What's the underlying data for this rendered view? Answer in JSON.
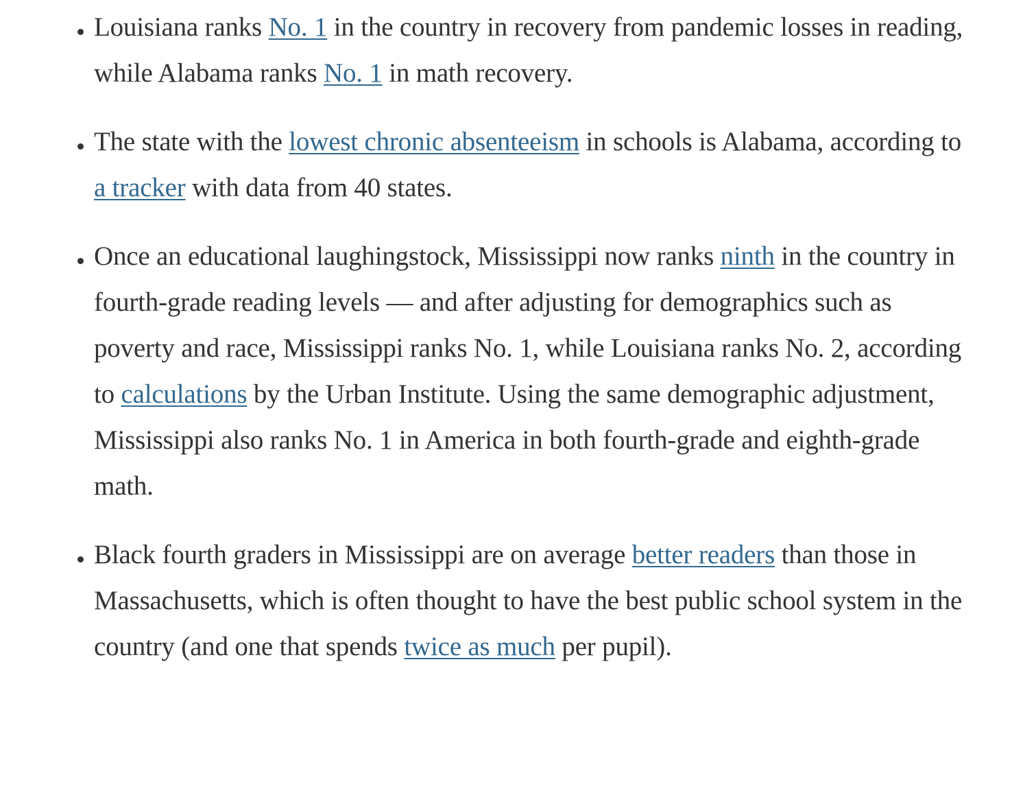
{
  "page": {
    "background": "#ffffff",
    "text_color": "#333333",
    "link_color": "#326891"
  },
  "bullets": [
    {
      "runs": [
        {
          "text": "Louisiana ranks "
        },
        {
          "text": "No. 1",
          "link": true
        },
        {
          "text": " in the country in recovery from pandemic losses in reading, while Alabama ranks "
        },
        {
          "text": "No. 1",
          "link": true
        },
        {
          "text": " in math recovery."
        }
      ]
    },
    {
      "runs": [
        {
          "text": "The state with the "
        },
        {
          "text": "lowest chronic absenteeism",
          "link": true
        },
        {
          "text": " in schools is Alabama, according to "
        },
        {
          "text": "a tracker",
          "link": true
        },
        {
          "text": " with data from 40 states."
        }
      ]
    },
    {
      "runs": [
        {
          "text": "Once an educational laughingstock, Mississippi now ranks "
        },
        {
          "text": "ninth",
          "link": true
        },
        {
          "text": " in the country in fourth-grade reading levels — and after adjusting for demographics such as poverty and race, Mississippi ranks No. 1, while Louisiana ranks No. 2, according to "
        },
        {
          "text": "calculations",
          "link": true
        },
        {
          "text": " by the Urban Institute. Using the same demographic adjustment, Mississippi also ranks No. 1 in America in both fourth-grade and eighth-grade math."
        }
      ]
    },
    {
      "runs": [
        {
          "text": "Black fourth graders in Mississippi are on average "
        },
        {
          "text": "better readers",
          "link": true
        },
        {
          "text": " than those in Massachusetts, which is often thought to have the best public school system in the country (and one that spends "
        },
        {
          "text": "twice as much",
          "link": true
        },
        {
          "text": " per pupil)."
        }
      ]
    }
  ]
}
